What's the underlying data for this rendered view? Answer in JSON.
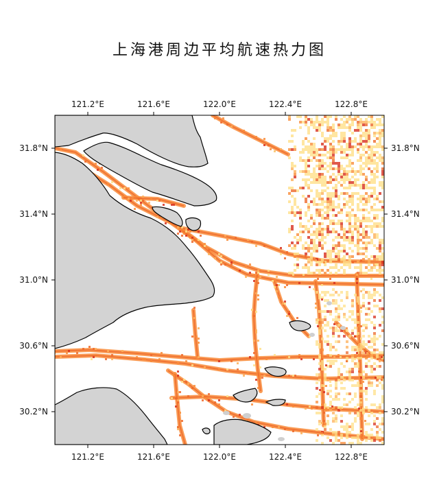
{
  "title": "上海港周边平均航速热力图",
  "map": {
    "lon_range": [
      121.0,
      123.0
    ],
    "lat_range": [
      30.0,
      32.0
    ],
    "lon_ticks": [
      121.2,
      121.6,
      122.0,
      122.4,
      122.8
    ],
    "lat_ticks": [
      30.2,
      30.6,
      31.0,
      31.4,
      31.8
    ],
    "lon_tick_labels": [
      "121.2°E",
      "121.6°E",
      "122.0°E",
      "122.4°E",
      "122.8°E"
    ],
    "lat_tick_labels": [
      "30.2°N",
      "30.6°N",
      "31.0°N",
      "31.4°N",
      "31.8°N"
    ],
    "land_color": "#d3d3d3",
    "coast_color": "#000000",
    "heat_colors": [
      "#ffe08a",
      "#fdb05a",
      "#f98c3a",
      "#ee6a2c",
      "#d7301f"
    ]
  }
}
